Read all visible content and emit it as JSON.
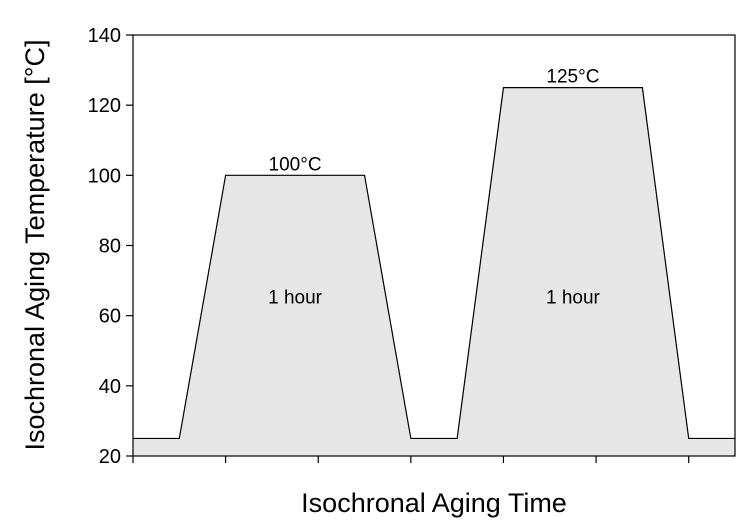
{
  "chart_data": {
    "type": "area",
    "title": "",
    "xlabel": "Isochronal Aging Time",
    "ylabel": "Isochronal Aging Temperature [°C]",
    "ylim": [
      20,
      140
    ],
    "yticks": [
      20,
      40,
      60,
      80,
      100,
      120,
      140
    ],
    "xlim": [
      0,
      13
    ],
    "xticks": [
      0,
      2,
      4,
      6,
      8,
      10,
      12
    ],
    "grid": false,
    "fill_color": "#e6e6e6",
    "line_color": "#000000",
    "series": [
      {
        "x": [
          0,
          1,
          2,
          5,
          6,
          7,
          8,
          11,
          12,
          13
        ],
        "y": [
          25,
          25,
          100,
          100,
          25,
          25,
          125,
          125,
          25,
          25
        ]
      }
    ],
    "annotations": [
      {
        "text": "100°C",
        "x": 3.5,
        "y": 100
      },
      {
        "text": "1 hour",
        "x": 3.5,
        "y": 60
      },
      {
        "text": "125°C",
        "x": 9.5,
        "y": 125
      },
      {
        "text": "1 hour",
        "x": 9.5,
        "y": 60
      }
    ]
  }
}
